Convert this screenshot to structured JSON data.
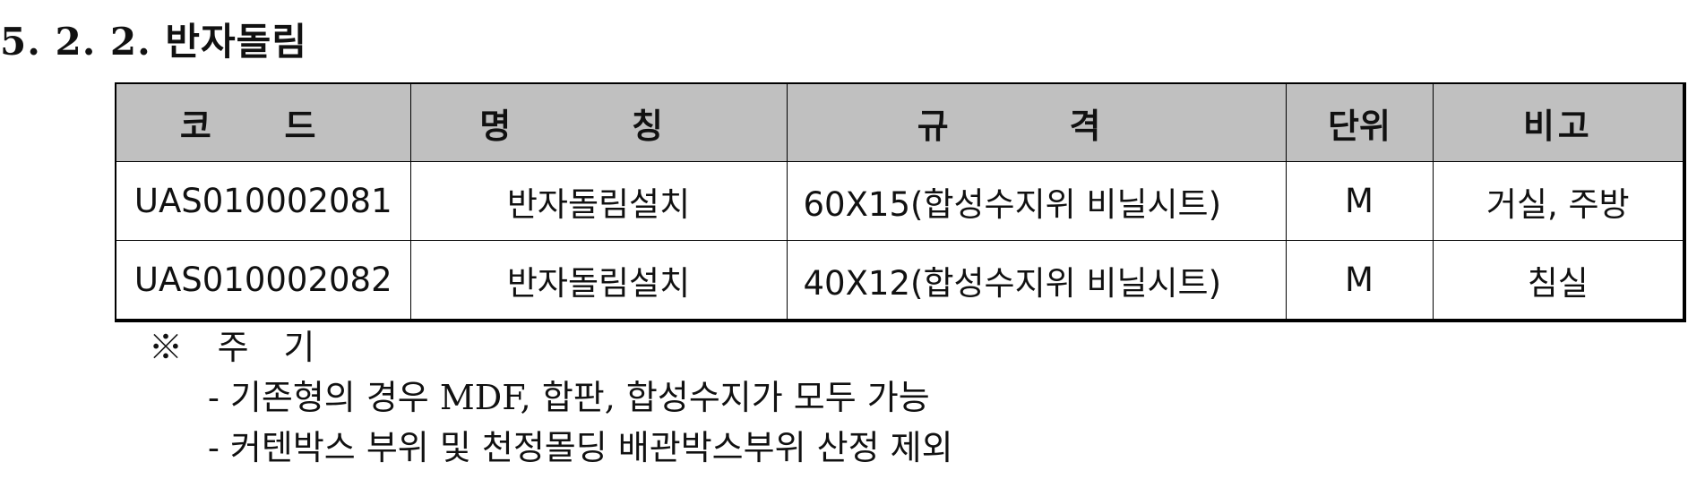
{
  "section": {
    "title": "5. 2. 2. 반자돌림"
  },
  "table": {
    "headers": {
      "code": "코  드",
      "name": "명  칭",
      "spec": "규  격",
      "unit": "단위",
      "note": "비고"
    },
    "rows": [
      {
        "code": "UAS010002081",
        "name": "반자돌림설치",
        "spec": "60X15(합성수지위 비닐시트)",
        "unit": "M",
        "note": "거실, 주방"
      },
      {
        "code": "UAS010002082",
        "name": "반자돌림설치",
        "spec": "40X12(합성수지위 비닐시트)",
        "unit": "M",
        "note": "침실"
      }
    ]
  },
  "notes": {
    "heading": "※ 주 기",
    "items": [
      "- 기존형의 경우 MDF, 합판, 합성수지가 모두 가능",
      "- 커텐박스 부위 및 천정몰딩 배관박스부위 산정 제외"
    ]
  }
}
